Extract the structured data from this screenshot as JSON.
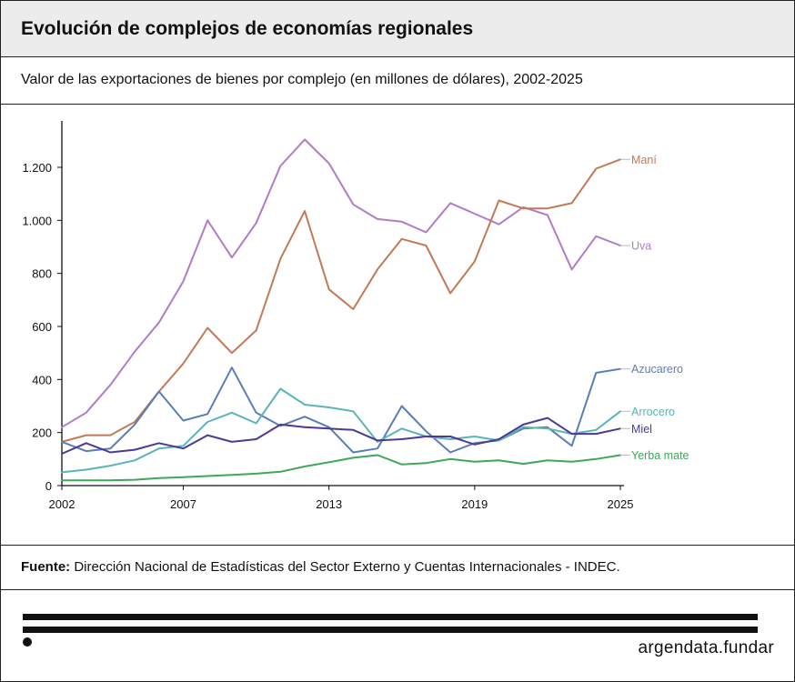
{
  "header": {
    "title": "Evolución de complejos de economías regionales"
  },
  "subheader": {
    "subtitle": "Valor de las exportaciones de bienes por complejo (en millones de dólares), 2002-2025"
  },
  "footer": {
    "source_label": "Fuente:",
    "source_text": "Dirección Nacional de Estadísticas del Sector Externo y Cuentas Internacionales - INDEC."
  },
  "brand": {
    "text": "argendata.fundar"
  },
  "chart_data": {
    "type": "line",
    "x": [
      2002,
      2003,
      2004,
      2005,
      2006,
      2007,
      2008,
      2009,
      2010,
      2011,
      2012,
      2013,
      2014,
      2015,
      2016,
      2017,
      2018,
      2019,
      2020,
      2021,
      2022,
      2023,
      2024,
      2025
    ],
    "xticks": [
      2002,
      2007,
      2013,
      2019,
      2025
    ],
    "xtick_labels": [
      "2002",
      "2007",
      "2013",
      "2019",
      "2025"
    ],
    "xlim": [
      2002,
      2025
    ],
    "ylim": [
      0,
      1300
    ],
    "yticks": [
      0,
      200,
      400,
      600,
      800,
      1000,
      1200
    ],
    "ytick_labels": [
      "0",
      "200",
      "400",
      "600",
      "800",
      "1.000",
      "1.200"
    ],
    "grid": false,
    "legend": "end-of-line labels",
    "series": [
      {
        "name": "Uva",
        "color": "#b07cc6",
        "values": [
          220,
          275,
          380,
          505,
          615,
          770,
          1000,
          860,
          990,
          1205,
          1305,
          1215,
          1060,
          1005,
          995,
          955,
          1065,
          1025,
          985,
          1050,
          1020,
          815,
          940,
          905
        ]
      },
      {
        "name": "Maní",
        "color": "#c07a56",
        "values": [
          165,
          190,
          190,
          240,
          355,
          460,
          595,
          500,
          585,
          855,
          1035,
          740,
          665,
          815,
          930,
          905,
          725,
          845,
          1075,
          1045,
          1045,
          1065,
          1195,
          1230
        ]
      },
      {
        "name": "Azucarero",
        "color": "#5a7db8",
        "values": [
          165,
          130,
          140,
          230,
          355,
          245,
          270,
          445,
          275,
          225,
          260,
          220,
          125,
          140,
          300,
          205,
          125,
          160,
          170,
          215,
          220,
          150,
          425,
          440
        ]
      },
      {
        "name": "Arrocero",
        "color": "#5bb4b8",
        "values": [
          50,
          60,
          75,
          95,
          140,
          150,
          240,
          275,
          235,
          365,
          305,
          295,
          280,
          165,
          215,
          185,
          175,
          185,
          170,
          220,
          215,
          195,
          210,
          280
        ]
      },
      {
        "name": "Miel",
        "color": "#4a3a94",
        "values": [
          120,
          160,
          125,
          135,
          160,
          140,
          190,
          165,
          175,
          230,
          220,
          215,
          210,
          170,
          175,
          185,
          185,
          155,
          175,
          230,
          255,
          195,
          195,
          215
        ]
      },
      {
        "name": "Yerba mate",
        "color": "#3fa75a",
        "values": [
          20,
          20,
          20,
          22,
          28,
          32,
          36,
          40,
          45,
          52,
          72,
          88,
          105,
          115,
          80,
          85,
          100,
          90,
          95,
          82,
          95,
          90,
          100,
          115
        ]
      }
    ]
  }
}
